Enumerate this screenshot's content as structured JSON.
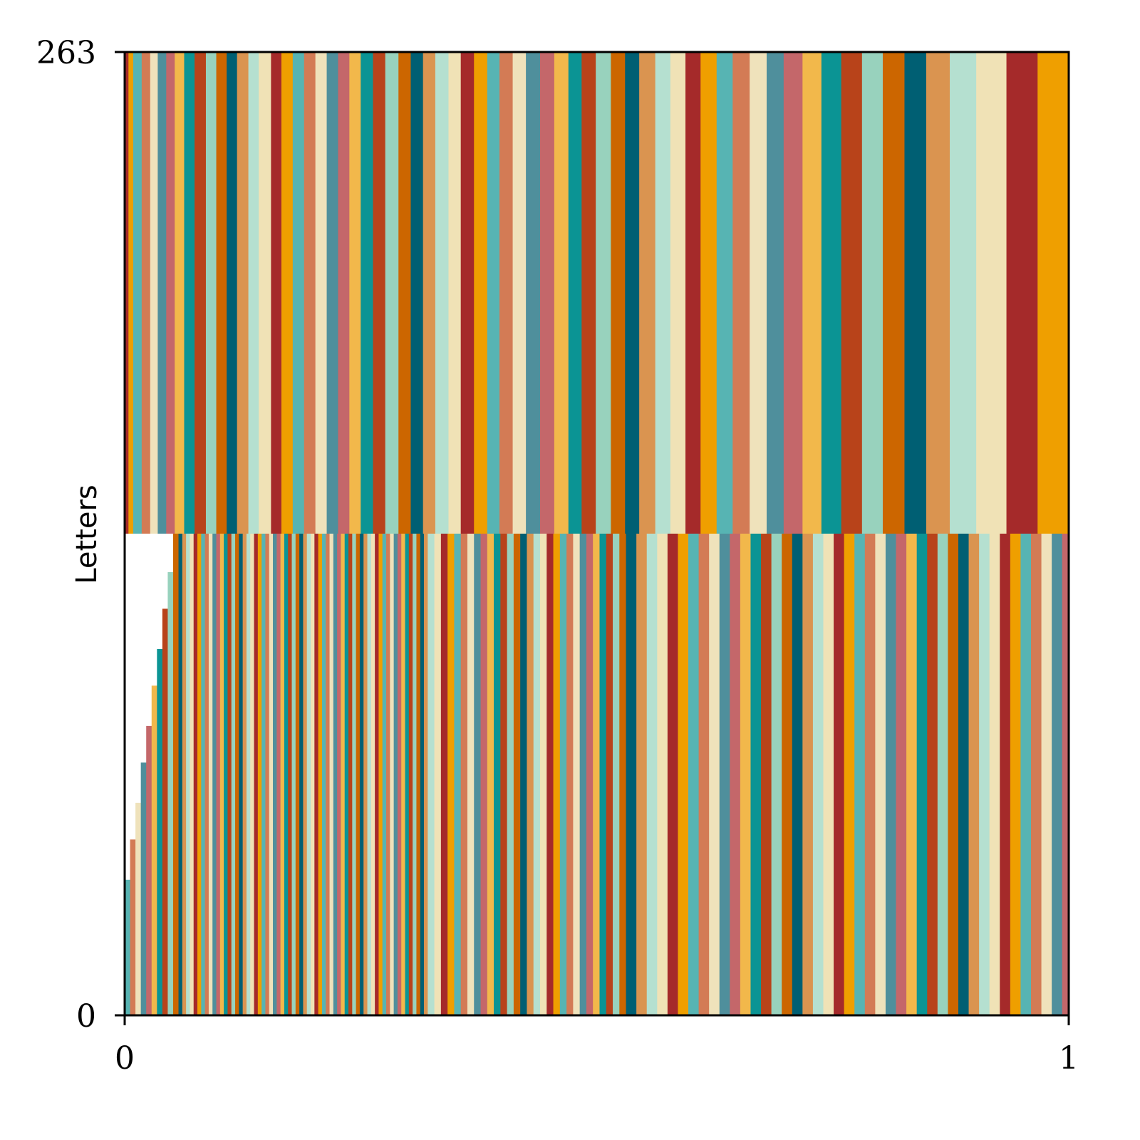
{
  "chart_data": {
    "type": "stripes",
    "ylabel": "Letters",
    "xlim": [
      0,
      1
    ],
    "ylim": [
      0,
      263
    ],
    "xticks": [
      0,
      1
    ],
    "yticks": [
      0,
      263
    ],
    "palette": [
      "#a52a2a",
      "#ef9f00",
      "#57b4b3",
      "#d37b55",
      "#efe2bb",
      "#4f8f9c",
      "#c4676a",
      "#f2b84b",
      "#0b9494",
      "#b8431a",
      "#98d2bd",
      "#cc6600",
      "#005f73",
      "#da9450",
      "#b5e0d0",
      "#f0e2b6"
    ],
    "layers": [
      {
        "base": 131.5,
        "top": 263,
        "widths": [
          0.004,
          0.005,
          0.009,
          0.009,
          0.008,
          0.009,
          0.009,
          0.01,
          0.011,
          0.012,
          0.011,
          0.011,
          0.011,
          0.012,
          0.011,
          0.013,
          0.011,
          0.012,
          0.012,
          0.012,
          0.012,
          0.012,
          0.012,
          0.012,
          0.013,
          0.013,
          0.014,
          0.013,
          0.013,
          0.013,
          0.014,
          0.013,
          0.014,
          0.014,
          0.013,
          0.014,
          0.014,
          0.015,
          0.015,
          0.015,
          0.014,
          0.015,
          0.016,
          0.015,
          0.015,
          0.017,
          0.016,
          0.016,
          0.016,
          0.017,
          0.017,
          0.018,
          0.018,
          0.018,
          0.02,
          0.02,
          0.021,
          0.022,
          0.022,
          0.023,
          0.023,
          0.025,
          0.028,
          0.032,
          0.033,
          0.035
        ]
      },
      {
        "base": 0,
        "tops": [
          37,
          48,
          58,
          69,
          79,
          90,
          100,
          111,
          121,
          131.5
        ],
        "widths": [
          0.0057,
          0.0057,
          0.0057,
          0.0057,
          0.0057,
          0.0057,
          0.0057,
          0.0057,
          0.0057,
          0.0057
        ]
      },
      {
        "base": 0,
        "top": 131.5,
        "widths": [
          0.004,
          0.004,
          0.004,
          0.004,
          0.004,
          0.004,
          0.004,
          0.004,
          0.004,
          0.004,
          0.004,
          0.004,
          0.004,
          0.004,
          0.004,
          0.004,
          0.004,
          0.004,
          0.004,
          0.004,
          0.004,
          0.004,
          0.004,
          0.004,
          0.004,
          0.004,
          0.004,
          0.004,
          0.004,
          0.004,
          0.004,
          0.004,
          0.004,
          0.004,
          0.004,
          0.004,
          0.004,
          0.004,
          0.004,
          0.004,
          0.004,
          0.004,
          0.004,
          0.004,
          0.004,
          0.004,
          0.004,
          0.004,
          0.004,
          0.004,
          0.004,
          0.004,
          0.004,
          0.004,
          0.004,
          0.004,
          0.004,
          0.004,
          0.004,
          0.004,
          0.004,
          0.004,
          0.004,
          0.004,
          0.004,
          0.004,
          0.007,
          0.007,
          0.007,
          0.007,
          0.007,
          0.007,
          0.007,
          0.007,
          0.007,
          0.007,
          0.007,
          0.007,
          0.007,
          0.007,
          0.007,
          0.007,
          0.007,
          0.007,
          0.007,
          0.007,
          0.007,
          0.007,
          0.007,
          0.007,
          0.007,
          0.007,
          0.007,
          0.007,
          0.007,
          0.007,
          0.011,
          0.011,
          0.011,
          0.011,
          0.011,
          0.011,
          0.011,
          0.011,
          0.011,
          0.011,
          0.011,
          0.011,
          0.011,
          0.011,
          0.011,
          0.011,
          0.011,
          0.011,
          0.011,
          0.011,
          0.011,
          0.011,
          0.011,
          0.011,
          0.011,
          0.011,
          0.011,
          0.011,
          0.011,
          0.011,
          0.011,
          0.011,
          0.011,
          0.011,
          0.011,
          0.011,
          0.011,
          0.011,
          0.011,
          0.011,
          0.011,
          0.011,
          0.011
        ]
      }
    ]
  }
}
